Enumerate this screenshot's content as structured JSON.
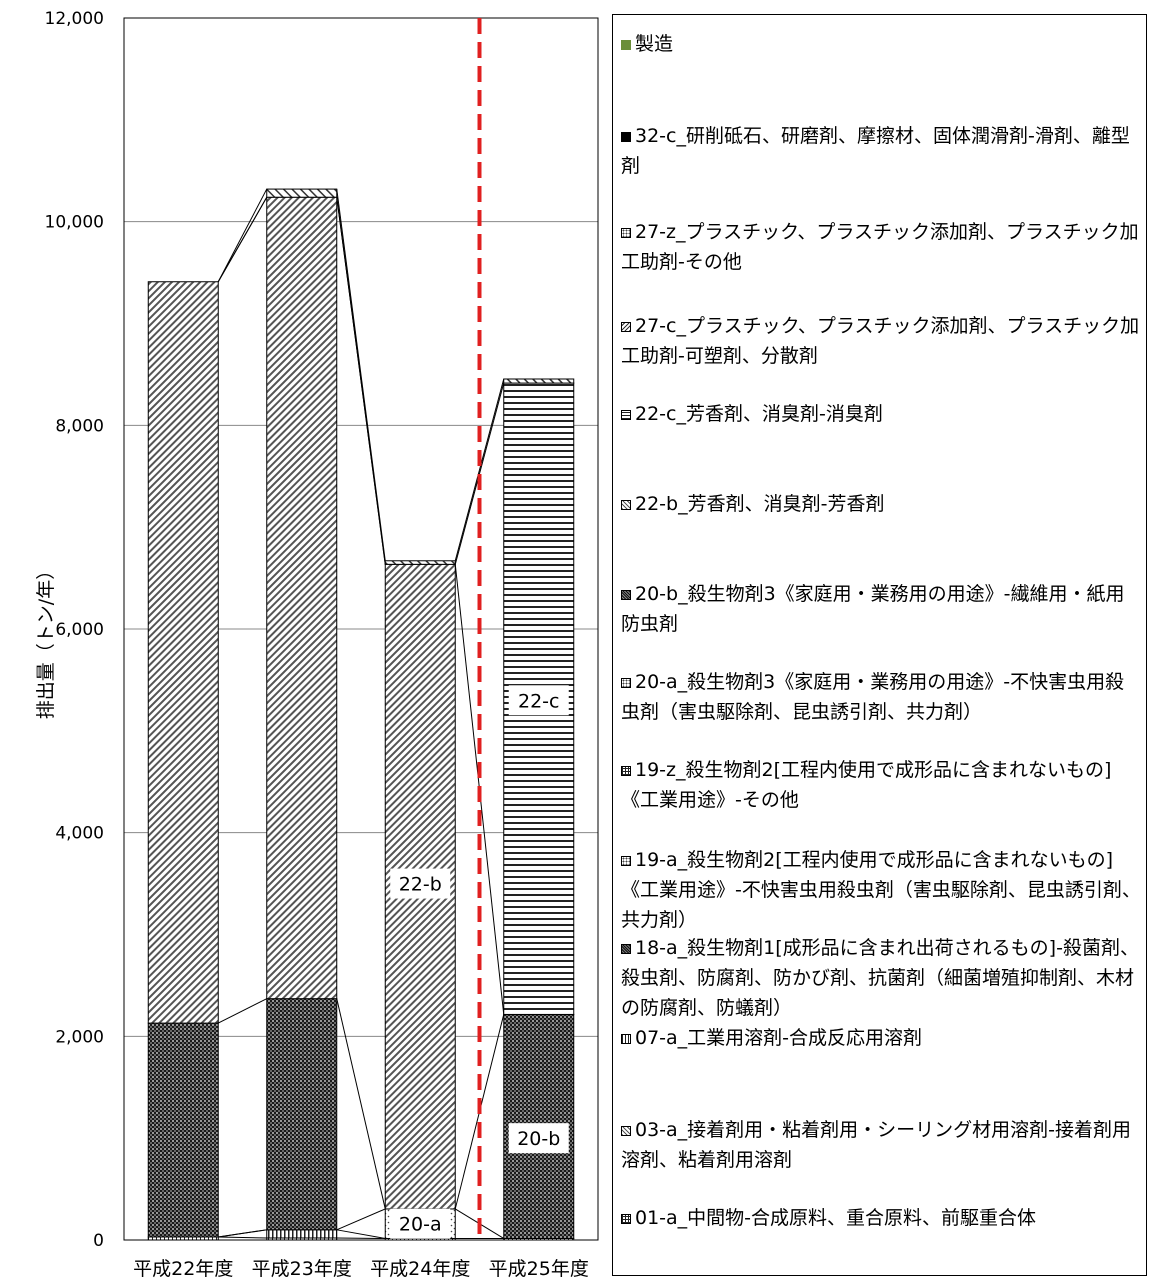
{
  "chart_data": {
    "type": "bar",
    "stacked": true,
    "ylabel": "排出量（トン/年）",
    "ylim": [
      0,
      12000
    ],
    "yticks": [
      "0",
      "2,000",
      "4,000",
      "6,000",
      "8,000",
      "10,000",
      "12,000"
    ],
    "grid": true,
    "categories": [
      "平成22年度",
      "平成23年度",
      "平成24年度",
      "平成25年度"
    ],
    "divider_after_index": 2,
    "divider_color": "#e02020",
    "series": [
      {
        "key": "s01a",
        "pattern": "grid",
        "values": [
          30,
          20,
          15,
          15
        ]
      },
      {
        "key": "s03a",
        "pattern": "diag",
        "values": [
          0,
          0,
          0,
          0
        ]
      },
      {
        "key": "s07a",
        "pattern": "vert",
        "values": [
          0,
          80,
          0,
          0
        ]
      },
      {
        "key": "s18a",
        "pattern": "dark",
        "values": [
          0,
          0,
          0,
          0
        ]
      },
      {
        "key": "s19a",
        "pattern": "dots",
        "values": [
          0,
          0,
          0,
          0
        ]
      },
      {
        "key": "s19z",
        "pattern": "grid",
        "values": [
          0,
          0,
          0,
          0
        ]
      },
      {
        "key": "s20a",
        "pattern": "dots",
        "values": [
          0,
          0,
          290,
          0
        ]
      },
      {
        "key": "s20b",
        "pattern": "cross",
        "values": [
          2100,
          2270,
          0,
          2200
        ]
      },
      {
        "key": "s22b",
        "pattern": "diag",
        "values": [
          7280,
          7870,
          6330,
          0
        ]
      },
      {
        "key": "s22c",
        "pattern": "hstripe",
        "values": [
          0,
          0,
          0,
          6200
        ]
      },
      {
        "key": "s27c",
        "pattern": "diag2",
        "values": [
          0,
          80,
          35,
          40
        ]
      },
      {
        "key": "s27z",
        "pattern": "dots",
        "values": [
          0,
          0,
          0,
          0
        ]
      },
      {
        "key": "s32c",
        "pattern": "solid",
        "values": [
          0,
          0,
          0,
          0
        ]
      },
      {
        "key": "mfg",
        "pattern": "green",
        "values": [
          0,
          0,
          0,
          0
        ]
      }
    ],
    "data_labels": [
      {
        "text": "20-a",
        "category": 2,
        "series": "s20a"
      },
      {
        "text": "22-b",
        "category": 2,
        "series": "s22b",
        "at": 3500
      },
      {
        "text": "22-c",
        "category": 3,
        "series": "s22c",
        "at": 5300
      },
      {
        "text": "20-b",
        "category": 3,
        "series": "s20b",
        "at": 1000
      }
    ]
  },
  "legend": [
    {
      "text": "製造",
      "color": "#6b8e3a",
      "pattern": "green",
      "top": 14
    },
    {
      "text": "32-c_研削砥石、研磨剤、摩擦材、固体潤滑剤-滑剤、離型剤",
      "pattern": "solid",
      "top": 106
    },
    {
      "text": "27-z_プラスチック、プラスチック添加剤、プラスチック加工助剤-その他",
      "pattern": "dots",
      "top": 202
    },
    {
      "text": "27-c_プラスチック、プラスチック添加剤、プラスチック加工助剤-可塑剤、分散剤",
      "pattern": "diag2",
      "top": 296
    },
    {
      "text": "22-c_芳香剤、消臭剤-消臭剤",
      "pattern": "hstripe",
      "top": 384
    },
    {
      "text": "22-b_芳香剤、消臭剤-芳香剤",
      "pattern": "diag",
      "top": 474
    },
    {
      "text": "20-b_殺生物剤3《家庭用・業務用の用途》-繊維用・紙用防虫剤",
      "pattern": "cross",
      "top": 564
    },
    {
      "text": "20-a_殺生物剤3《家庭用・業務用の用途》-不快害虫用殺虫剤（害虫駆除剤、昆虫誘引剤、共力剤）",
      "pattern": "dots",
      "top": 652
    },
    {
      "text": "19-z_殺生物剤2[工程内使用で成形品に含まれないもの]《工業用途》-その他",
      "pattern": "grid",
      "top": 740
    },
    {
      "text": "19-a_殺生物剤2[工程内使用で成形品に含まれないもの]《工業用途》-不快害虫用殺虫剤（害虫駆除剤、昆虫誘引剤、共力剤）",
      "pattern": "dots",
      "top": 830
    },
    {
      "text": "18-a_殺生物剤1[成形品に含まれ出荷されるもの]-殺菌剤、殺虫剤、防腐剤、防かび剤、抗菌剤（細菌増殖抑制剤、木材の防腐剤、防蟻剤）",
      "pattern": "dark",
      "top": 918
    },
    {
      "text": "07-a_工業用溶剤-合成反応用溶剤",
      "pattern": "vert",
      "top": 1008
    },
    {
      "text": "03-a_接着剤用・粘着剤用・シーリング材用溶剤-接着剤用溶剤、粘着剤用溶剤",
      "pattern": "diag",
      "top": 1100
    },
    {
      "text": "01-a_中間物-合成原料、重合原料、前駆重合体",
      "pattern": "grid",
      "top": 1188
    }
  ]
}
